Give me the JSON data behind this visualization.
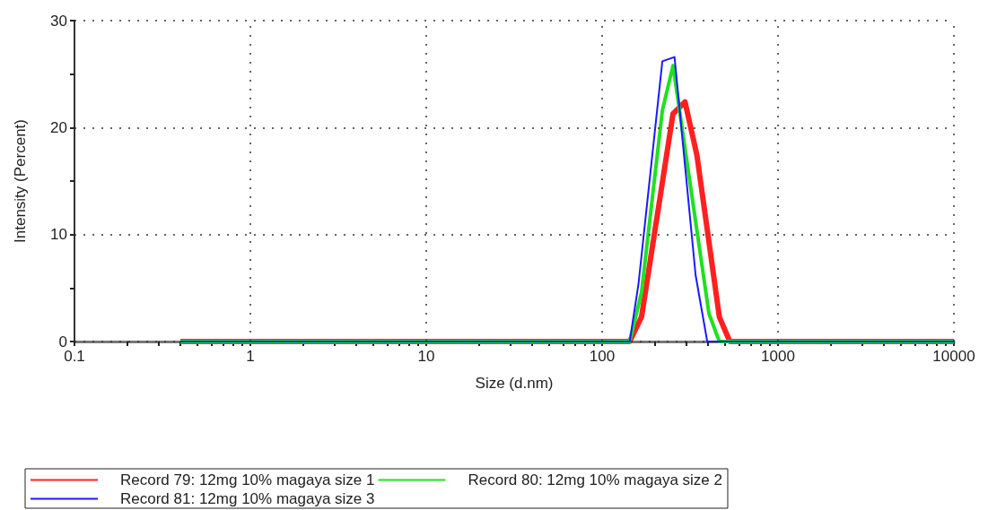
{
  "chart_data": {
    "type": "line",
    "xlabel": "Size (d.nm)",
    "ylabel": "Intensity (Percent)",
    "log": "x",
    "grid": true,
    "legend": "bottom",
    "marker": "none",
    "line_style": "solid",
    "xlim": [
      0.1,
      10000
    ],
    "ylim": [
      0,
      30
    ],
    "xticks": [
      0.1,
      {
        "value": 0.2,
        "label": null
      },
      {
        "value": 0.3,
        "label": null
      },
      {
        "value": 0.4,
        "label": null
      },
      {
        "value": 0.5,
        "label": null
      },
      {
        "value": 0.6,
        "label": null
      },
      {
        "value": 0.7,
        "label": null
      },
      {
        "value": 0.8,
        "label": null
      },
      {
        "value": 0.9,
        "label": null
      },
      1,
      {
        "value": 2,
        "label": null
      },
      {
        "value": 3,
        "label": null
      },
      {
        "value": 4,
        "label": null
      },
      {
        "value": 5,
        "label": null
      },
      {
        "value": 6,
        "label": null
      },
      {
        "value": 7,
        "label": null
      },
      {
        "value": 8,
        "label": null
      },
      {
        "value": 9,
        "label": null
      },
      10,
      {
        "value": 20,
        "label": null
      },
      {
        "value": 30,
        "label": null
      },
      {
        "value": 40,
        "label": null
      },
      {
        "value": 50,
        "label": null
      },
      {
        "value": 60,
        "label": null
      },
      {
        "value": 70,
        "label": null
      },
      {
        "value": 80,
        "label": null
      },
      {
        "value": 90,
        "label": null
      },
      100,
      {
        "value": 200,
        "label": null
      },
      {
        "value": 300,
        "label": null
      },
      {
        "value": 400,
        "label": null
      },
      {
        "value": 500,
        "label": null
      },
      {
        "value": 600,
        "label": null
      },
      {
        "value": 700,
        "label": null
      },
      {
        "value": 800,
        "label": null
      },
      {
        "value": 900,
        "label": null
      },
      1000,
      {
        "value": 2000,
        "label": null
      },
      {
        "value": 3000,
        "label": null
      },
      {
        "value": 4000,
        "label": null
      },
      {
        "value": 5000,
        "label": null
      },
      {
        "value": 6000,
        "label": null
      },
      {
        "value": 7000,
        "label": null
      },
      {
        "value": 8000,
        "label": null
      },
      {
        "value": 9000,
        "label": null
      },
      10000
    ],
    "yticks": [
      0,
      {
        "value": 5,
        "label": null
      },
      10,
      {
        "value": 15,
        "label": null
      },
      20,
      {
        "value": 25,
        "label": null
      },
      30
    ],
    "series": [
      {
        "name": "Record 79: 12mg 10% magaya size 1",
        "color": "#ff2020",
        "x": [
          0.4,
          143.5,
          167.5,
          253,
          296,
          346,
          464,
          532,
          10000
        ],
        "values": [
          0,
          0,
          2.3,
          21.3,
          22.4,
          17.4,
          2.3,
          0,
          0
        ]
      },
      {
        "name": "Record 80: 12mg 10% magaya size 2",
        "color": "#20e020",
        "x": [
          0.4,
          143.5,
          167.5,
          220,
          253,
          405,
          464,
          10000
        ],
        "values": [
          0,
          0,
          4.6,
          21.6,
          25.8,
          2.6,
          0,
          0
        ]
      },
      {
        "name": "Record 81: 12mg 10% magaya size 3",
        "color": "#1a1aff",
        "x": [
          0.4,
          143.5,
          161,
          220,
          258,
          340,
          396,
          10000
        ],
        "values": [
          0,
          0,
          5.4,
          26.2,
          26.6,
          6.2,
          0,
          0
        ]
      }
    ]
  }
}
